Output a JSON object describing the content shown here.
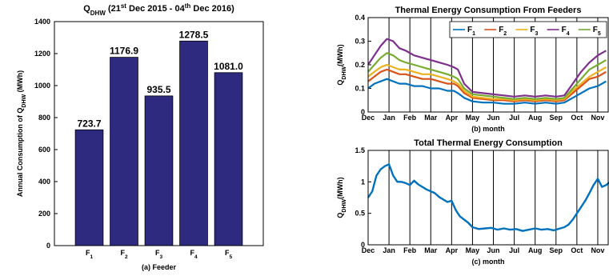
{
  "colors": {
    "bar": "#2E2A7F",
    "series": [
      "#0072BD",
      "#D95319",
      "#EDB120",
      "#7E2F8E",
      "#77AC30"
    ]
  },
  "chart_data": [
    {
      "type": "bar",
      "title": {
        "main": "Q",
        "sub": "DHW",
        "p1": " (21",
        "sup1": "st",
        "p2": " Dec 2015   -   04",
        "sup2": "th",
        "p3": " Dec 2016)"
      },
      "categories": [
        {
          "main": "F",
          "sub": "1"
        },
        {
          "main": "F",
          "sub": "2"
        },
        {
          "main": "F",
          "sub": "3"
        },
        {
          "main": "F",
          "sub": "4"
        },
        {
          "main": "F",
          "sub": "5"
        }
      ],
      "values": [
        723.7,
        1176.9,
        935.5,
        1278.5,
        1081.0
      ],
      "value_labels": [
        "723.7",
        "1176.9",
        "935.5",
        "1278.5",
        "1081.0"
      ],
      "xlabel": "(a) Feeder",
      "ylabel": {
        "main": "Annual Consumption of Q",
        "sub": "DHW",
        "rest": " (MWh)"
      },
      "ylim": [
        0,
        1400
      ],
      "yticks": [
        0,
        200,
        400,
        600,
        800,
        1000,
        1200,
        1400
      ],
      "grid": false
    },
    {
      "type": "line",
      "title": "Thermal Energy Consumption From Feeders",
      "xlabel": "(b) month",
      "ylabel": {
        "main": "Q",
        "sub": "DHW",
        "rest": "(MWh)"
      },
      "x_ticks": [
        "Dec",
        "Jan",
        "Feb",
        "Mar",
        "Apr",
        "May",
        "Jun",
        "Jul",
        "Aug",
        "Sep",
        "Oct",
        "Nov"
      ],
      "ylim": [
        0,
        0.4
      ],
      "yticks": [
        "0",
        "0.1",
        "0.2",
        "0.3",
        "0.4"
      ],
      "legend_position": "top-right",
      "x_unit": "month (0 = start of Dec 2015)",
      "series": [
        {
          "name": {
            "main": "F",
            "sub": "1"
          },
          "x": [
            0,
            0.3,
            0.6,
            0.9,
            1.2,
            1.5,
            1.8,
            2.2,
            2.6,
            3.0,
            3.4,
            3.8,
            4.1,
            4.3,
            4.6,
            5.0,
            5.5,
            6.0,
            6.5,
            7.0,
            7.5,
            8.0,
            8.5,
            9.0,
            9.4,
            9.8,
            10.2,
            10.6,
            11.0,
            11.4
          ],
          "values": [
            0.1,
            0.12,
            0.13,
            0.14,
            0.13,
            0.12,
            0.12,
            0.11,
            0.11,
            0.1,
            0.1,
            0.09,
            0.09,
            0.08,
            0.06,
            0.045,
            0.04,
            0.04,
            0.035,
            0.035,
            0.04,
            0.035,
            0.04,
            0.035,
            0.04,
            0.06,
            0.08,
            0.1,
            0.11,
            0.13
          ]
        },
        {
          "name": {
            "main": "F",
            "sub": "2"
          },
          "x": [
            0,
            0.3,
            0.6,
            0.9,
            1.2,
            1.5,
            1.8,
            2.2,
            2.6,
            3.0,
            3.4,
            3.8,
            4.1,
            4.3,
            4.6,
            5.0,
            5.5,
            6.0,
            6.5,
            7.0,
            7.5,
            8.0,
            8.5,
            9.0,
            9.4,
            9.8,
            10.2,
            10.6,
            11.0,
            11.4
          ],
          "values": [
            0.13,
            0.15,
            0.17,
            0.18,
            0.17,
            0.16,
            0.16,
            0.15,
            0.14,
            0.14,
            0.13,
            0.12,
            0.12,
            0.11,
            0.08,
            0.06,
            0.055,
            0.05,
            0.05,
            0.045,
            0.05,
            0.045,
            0.05,
            0.045,
            0.05,
            0.08,
            0.11,
            0.14,
            0.15,
            0.17
          ]
        },
        {
          "name": {
            "main": "F",
            "sub": "3"
          },
          "x": [
            0,
            0.3,
            0.6,
            0.9,
            1.2,
            1.5,
            1.8,
            2.2,
            2.6,
            3.0,
            3.4,
            3.8,
            4.1,
            4.3,
            4.6,
            5.0,
            5.5,
            6.0,
            6.5,
            7.0,
            7.5,
            8.0,
            8.5,
            9.0,
            9.4,
            9.8,
            10.2,
            10.6,
            11.0,
            11.4
          ],
          "values": [
            0.15,
            0.17,
            0.19,
            0.2,
            0.19,
            0.18,
            0.18,
            0.17,
            0.16,
            0.16,
            0.15,
            0.14,
            0.13,
            0.12,
            0.09,
            0.065,
            0.06,
            0.055,
            0.055,
            0.05,
            0.055,
            0.05,
            0.055,
            0.05,
            0.055,
            0.09,
            0.12,
            0.15,
            0.17,
            0.19
          ]
        },
        {
          "name": {
            "main": "F",
            "sub": "4"
          },
          "x": [
            0,
            0.3,
            0.6,
            0.9,
            1.2,
            1.5,
            1.8,
            2.2,
            2.6,
            3.0,
            3.4,
            3.8,
            4.1,
            4.3,
            4.6,
            5.0,
            5.5,
            6.0,
            6.5,
            7.0,
            7.5,
            8.0,
            8.5,
            9.0,
            9.4,
            9.8,
            10.2,
            10.6,
            11.0,
            11.4
          ],
          "values": [
            0.2,
            0.24,
            0.28,
            0.31,
            0.3,
            0.27,
            0.26,
            0.24,
            0.23,
            0.22,
            0.21,
            0.2,
            0.19,
            0.18,
            0.12,
            0.085,
            0.08,
            0.075,
            0.07,
            0.065,
            0.07,
            0.065,
            0.07,
            0.065,
            0.07,
            0.12,
            0.17,
            0.21,
            0.24,
            0.26
          ]
        },
        {
          "name": {
            "main": "F",
            "sub": "5"
          },
          "x": [
            0,
            0.3,
            0.6,
            0.9,
            1.2,
            1.5,
            1.8,
            2.2,
            2.6,
            3.0,
            3.4,
            3.8,
            4.1,
            4.3,
            4.6,
            5.0,
            5.5,
            6.0,
            6.5,
            7.0,
            7.5,
            8.0,
            8.5,
            9.0,
            9.4,
            9.8,
            10.2,
            10.6,
            11.0,
            11.4
          ],
          "values": [
            0.17,
            0.2,
            0.23,
            0.25,
            0.24,
            0.22,
            0.21,
            0.2,
            0.19,
            0.18,
            0.17,
            0.16,
            0.15,
            0.14,
            0.1,
            0.075,
            0.07,
            0.065,
            0.06,
            0.055,
            0.06,
            0.055,
            0.06,
            0.055,
            0.06,
            0.1,
            0.14,
            0.18,
            0.2,
            0.22
          ]
        }
      ],
      "grid": false
    },
    {
      "type": "line",
      "title": "Total Thermal Energy Consumption",
      "xlabel": "(c) month",
      "ylabel": {
        "main": "Q",
        "sub": "DHW",
        "rest": "(MWh)"
      },
      "x_ticks": [
        "Dec",
        "Jan",
        "Feb",
        "Mar",
        "Apr",
        "May",
        "Jun",
        "Jul",
        "Aug",
        "Sep",
        "Oct",
        "Nov"
      ],
      "ylim": [
        0,
        1.5
      ],
      "yticks": [
        "0",
        "0.5",
        "1",
        "1.5"
      ],
      "x_unit": "month (0 = start of Dec 2015)",
      "series": [
        {
          "x": [
            0,
            0.2,
            0.4,
            0.6,
            0.8,
            1.0,
            1.2,
            1.4,
            1.6,
            1.8,
            2.0,
            2.2,
            2.4,
            2.6,
            2.8,
            3.0,
            3.2,
            3.4,
            3.6,
            3.8,
            4.0,
            4.2,
            4.4,
            4.6,
            4.8,
            5.0,
            5.3,
            5.6,
            5.9,
            6.2,
            6.5,
            6.8,
            7.1,
            7.4,
            7.7,
            8.0,
            8.3,
            8.6,
            8.9,
            9.2,
            9.4,
            9.6,
            9.8,
            10.0,
            10.2,
            10.4,
            10.6,
            10.8,
            11.0,
            11.2,
            11.4,
            11.6
          ],
          "values": [
            0.75,
            0.85,
            1.1,
            1.2,
            1.25,
            1.28,
            1.1,
            1.0,
            1.0,
            0.98,
            0.95,
            1.02,
            0.96,
            0.92,
            0.88,
            0.85,
            0.82,
            0.76,
            0.72,
            0.68,
            0.7,
            0.55,
            0.45,
            0.4,
            0.35,
            0.28,
            0.25,
            0.26,
            0.27,
            0.24,
            0.26,
            0.24,
            0.25,
            0.22,
            0.24,
            0.26,
            0.24,
            0.25,
            0.23,
            0.26,
            0.28,
            0.32,
            0.4,
            0.5,
            0.6,
            0.7,
            0.82,
            0.95,
            1.05,
            0.92,
            0.95,
            1.0
          ]
        }
      ],
      "grid": false
    }
  ]
}
